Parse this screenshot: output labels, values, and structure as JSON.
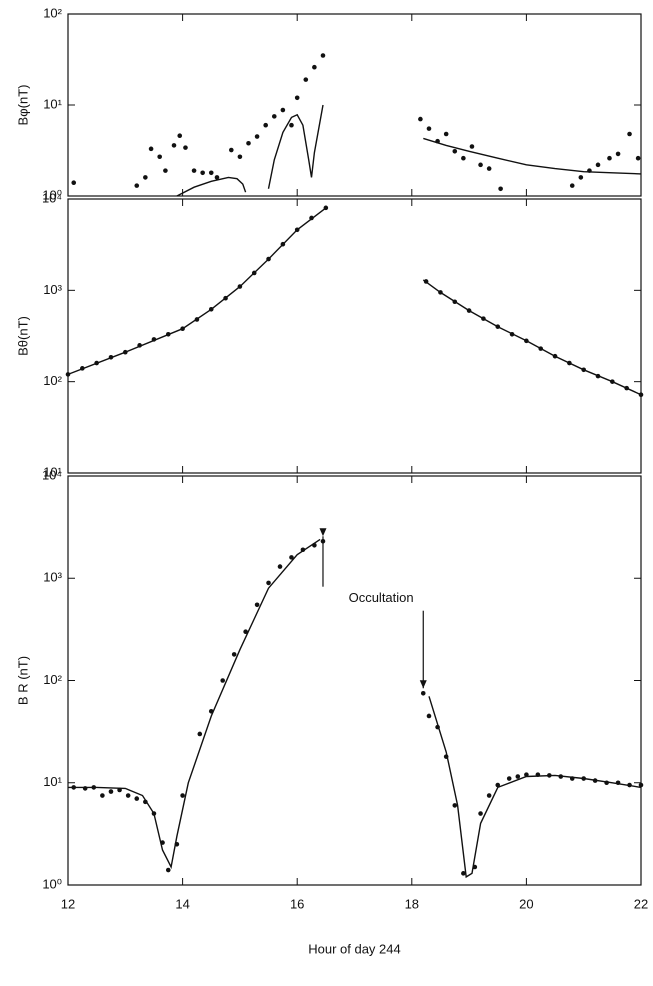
{
  "chart_data": [
    {
      "type": "scatter-line",
      "ylabel": "Bφ(nT)",
      "log_y": true,
      "xlim": [
        12,
        22
      ],
      "ylim": [
        1,
        100
      ],
      "yticks": [
        {
          "value": 1,
          "label": "10⁰"
        },
        {
          "value": 10,
          "label": "10¹"
        },
        {
          "value": 100,
          "label": "10²"
        }
      ],
      "series": [
        {
          "mode": "markers",
          "color": "#111111",
          "x": [
            12.1,
            13.2,
            13.35,
            13.45,
            13.6,
            13.7,
            13.85,
            13.95,
            14.05,
            14.2,
            14.35,
            14.5,
            14.6,
            14.85,
            15.0,
            15.15,
            15.3,
            15.45,
            15.6,
            15.75,
            15.9,
            16.0,
            16.15,
            16.3,
            16.45,
            18.15,
            18.3,
            18.45,
            18.6,
            18.75,
            18.9,
            19.05,
            19.2,
            19.35,
            19.55,
            20.8,
            20.95,
            21.1,
            21.25,
            21.45,
            21.6,
            21.8,
            21.95
          ],
          "values": [
            1.4,
            1.3,
            1.6,
            3.3,
            2.7,
            1.9,
            3.6,
            4.6,
            3.4,
            1.9,
            1.8,
            1.8,
            1.6,
            3.2,
            2.7,
            3.8,
            4.5,
            6.0,
            7.5,
            8.8,
            6.0,
            12,
            19,
            26,
            35,
            7,
            5.5,
            4.0,
            4.8,
            3.1,
            2.6,
            3.5,
            2.2,
            2.0,
            1.2,
            1.3,
            1.6,
            1.9,
            2.2,
            2.6,
            2.9,
            4.8,
            2.6
          ]
        },
        {
          "mode": "line",
          "color": "#111111",
          "x": [
            13.9,
            14.2,
            14.5,
            14.8,
            14.95,
            15.05,
            15.1,
            null,
            15.5,
            15.6,
            15.75,
            15.9,
            16.0,
            16.1,
            16.2,
            16.25,
            16.3,
            16.45,
            null,
            18.2,
            18.6,
            19.0,
            19.5,
            20.0,
            20.5,
            21.0,
            21.5,
            22.0
          ],
          "values": [
            1.0,
            1.25,
            1.45,
            1.6,
            1.55,
            1.35,
            1.1,
            null,
            1.2,
            2.5,
            5,
            7.3,
            7.8,
            6,
            2.5,
            1.6,
            3,
            10,
            null,
            4.3,
            3.6,
            3.1,
            2.6,
            2.2,
            2.0,
            1.85,
            1.8,
            1.75
          ]
        }
      ]
    },
    {
      "type": "scatter-line",
      "ylabel": "Bθ(nT)",
      "log_y": true,
      "xlim": [
        12,
        22
      ],
      "ylim": [
        10,
        10000
      ],
      "yticks": [
        {
          "value": 10,
          "label": "10¹"
        },
        {
          "value": 100,
          "label": "10²"
        },
        {
          "value": 1000,
          "label": "10³"
        },
        {
          "value": 10000,
          "label": "10⁴"
        }
      ],
      "series": [
        {
          "mode": "markers",
          "color": "#111111",
          "x": [
            12.0,
            12.25,
            12.5,
            12.75,
            13.0,
            13.25,
            13.5,
            13.75,
            14.0,
            14.25,
            14.5,
            14.75,
            15.0,
            15.25,
            15.5,
            15.75,
            16.0,
            16.25,
            16.5,
            18.25,
            18.5,
            18.75,
            19.0,
            19.25,
            19.5,
            19.75,
            20.0,
            20.25,
            20.5,
            20.75,
            21.0,
            21.25,
            21.5,
            21.75,
            22.0
          ],
          "values": [
            120,
            140,
            160,
            185,
            210,
            250,
            290,
            330,
            380,
            480,
            620,
            820,
            1100,
            1550,
            2200,
            3200,
            4600,
            6200,
            8000,
            1250,
            950,
            750,
            600,
            490,
            400,
            330,
            280,
            230,
            190,
            160,
            135,
            115,
            100,
            85,
            72
          ]
        },
        {
          "mode": "line",
          "color": "#111111",
          "x": [
            12.0,
            13.0,
            14.0,
            14.5,
            15.0,
            15.5,
            16.0,
            16.5,
            null,
            18.2,
            18.5,
            19.0,
            19.5,
            20.0,
            20.5,
            21.0,
            21.5,
            22.0
          ],
          "values": [
            120,
            210,
            380,
            620,
            1100,
            2200,
            4600,
            8000,
            null,
            1300,
            950,
            600,
            400,
            280,
            190,
            135,
            100,
            72
          ]
        }
      ]
    },
    {
      "type": "scatter-line",
      "ylabel": "B R (nT)",
      "log_y": true,
      "xlabel": "Hour of day 244",
      "annotation": "Occultation",
      "xlim": [
        12,
        22
      ],
      "ylim": [
        1,
        10000
      ],
      "xticks": [
        12,
        14,
        16,
        18,
        20,
        22
      ],
      "yticks": [
        {
          "value": 1,
          "label": "10⁰"
        },
        {
          "value": 10,
          "label": "10¹"
        },
        {
          "value": 100,
          "label": "10²"
        },
        {
          "value": 1000,
          "label": "10³"
        },
        {
          "value": 10000,
          "label": "10⁴"
        }
      ],
      "series": [
        {
          "mode": "markers",
          "color": "#111111",
          "x": [
            12.1,
            12.3,
            12.45,
            12.6,
            12.75,
            12.9,
            13.05,
            13.2,
            13.35,
            13.5,
            13.65,
            13.75,
            13.9,
            14.0,
            14.3,
            14.5,
            14.7,
            14.9,
            15.1,
            15.3,
            15.5,
            15.7,
            15.9,
            16.1,
            16.3,
            16.45,
            18.2,
            18.3,
            18.45,
            18.6,
            18.75,
            18.9,
            19.1,
            19.2,
            19.35,
            19.5,
            19.7,
            19.85,
            20.0,
            20.2,
            20.4,
            20.6,
            20.8,
            21.0,
            21.2,
            21.4,
            21.6,
            21.8,
            22.0
          ],
          "values": [
            9,
            8.8,
            9,
            7.5,
            8.2,
            8.5,
            7.5,
            7,
            6.5,
            5,
            2.6,
            1.4,
            2.5,
            7.5,
            30,
            50,
            100,
            180,
            300,
            550,
            900,
            1300,
            1600,
            1900,
            2100,
            2300,
            75,
            45,
            35,
            18,
            6,
            1.3,
            1.5,
            5,
            7.5,
            9.5,
            11,
            11.5,
            12,
            12,
            11.8,
            11.5,
            11,
            11,
            10.5,
            10,
            10,
            9.5,
            9.5
          ]
        },
        {
          "mode": "line",
          "color": "#111111",
          "x": [
            12.0,
            12.5,
            13.0,
            13.3,
            13.5,
            13.65,
            13.8,
            13.9,
            14.1,
            14.5,
            15.0,
            15.5,
            16.0,
            16.4,
            null,
            18.3,
            18.6,
            18.8,
            18.95,
            19.05,
            19.2,
            19.5,
            20.0,
            20.5,
            21.0,
            21.5,
            22.0
          ],
          "values": [
            9,
            9,
            8.8,
            7.5,
            5,
            2.2,
            1.5,
            3,
            10,
            45,
            200,
            800,
            1700,
            2400,
            null,
            70,
            20,
            6,
            1.2,
            1.3,
            4,
            9,
            11.5,
            11.8,
            11,
            10,
            9
          ]
        }
      ]
    }
  ]
}
